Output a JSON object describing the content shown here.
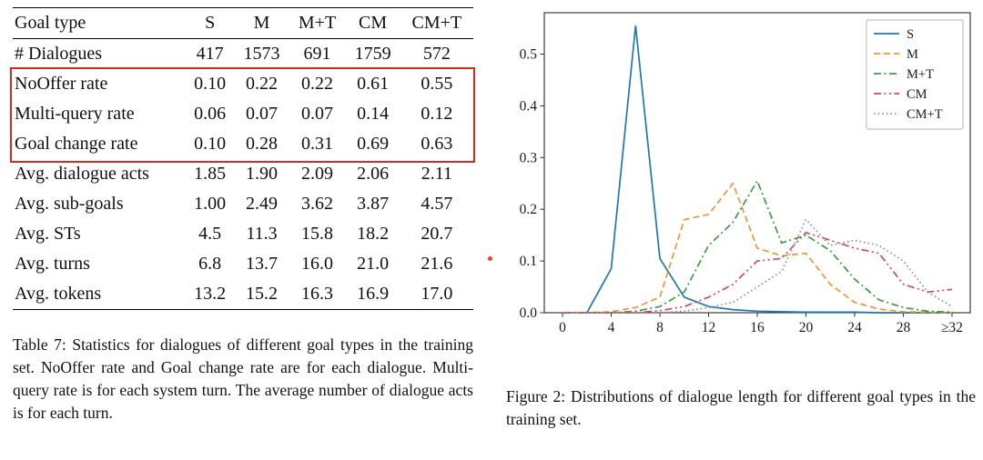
{
  "table": {
    "header": [
      "Goal type",
      "S",
      "M",
      "M+T",
      "CM",
      "CM+T"
    ],
    "rows": [
      {
        "label": "# Dialogues",
        "values": [
          "417",
          "1573",
          "691",
          "1759",
          "572"
        ],
        "highlight": false
      },
      {
        "label": "NoOffer rate",
        "values": [
          "0.10",
          "0.22",
          "0.22",
          "0.61",
          "0.55"
        ],
        "highlight": true
      },
      {
        "label": "Multi-query rate",
        "values": [
          "0.06",
          "0.07",
          "0.07",
          "0.14",
          "0.12"
        ],
        "highlight": true
      },
      {
        "label": "Goal change rate",
        "values": [
          "0.10",
          "0.28",
          "0.31",
          "0.69",
          "0.63"
        ],
        "highlight": true
      },
      {
        "label": "Avg. dialogue acts",
        "values": [
          "1.85",
          "1.90",
          "2.09",
          "2.06",
          "2.11"
        ],
        "highlight": false
      },
      {
        "label": "Avg. sub-goals",
        "values": [
          "1.00",
          "2.49",
          "3.62",
          "3.87",
          "4.57"
        ],
        "highlight": false
      },
      {
        "label": "Avg. STs",
        "values": [
          "4.5",
          "11.3",
          "15.8",
          "18.2",
          "20.7"
        ],
        "highlight": false
      },
      {
        "label": "Avg. turns",
        "values": [
          "6.8",
          "13.7",
          "16.0",
          "21.0",
          "21.6"
        ],
        "highlight": false
      },
      {
        "label": "Avg. tokens",
        "values": [
          "13.2",
          "15.2",
          "16.3",
          "16.9",
          "17.0"
        ],
        "highlight": false
      }
    ],
    "highlight_color": "#da291c",
    "caption": "Table 7: Statistics for dialogues of different goal types in the training set. NoOffer rate and Goal change rate are for each dialogue. Multi-query rate is for each system turn. The average number of dialogue acts is for each turn."
  },
  "figure": {
    "caption": "Figure 2: Distributions of dialogue length for different goal types in the training set."
  },
  "chart_data": {
    "type": "line",
    "title": "",
    "xlabel": "",
    "ylabel": "",
    "grid": false,
    "legend_position": "upper right",
    "x": [
      0,
      2,
      4,
      6,
      8,
      10,
      12,
      14,
      16,
      18,
      20,
      22,
      24,
      26,
      28,
      30,
      32
    ],
    "xlim": [
      -1.5,
      33.5
    ],
    "ylim": [
      0,
      0.58
    ],
    "xtick_values": [
      0,
      4,
      8,
      12,
      16,
      20,
      24,
      28,
      32
    ],
    "xtick_labels": [
      "0",
      "4",
      "8",
      "12",
      "16",
      "20",
      "24",
      "28",
      "≥32"
    ],
    "ytick_values": [
      0,
      0.1,
      0.2,
      0.3,
      0.4,
      0.5
    ],
    "ytick_labels": [
      "0.0",
      "0.1",
      "0.2",
      "0.3",
      "0.4",
      "0.5"
    ],
    "series": [
      {
        "name": "S",
        "color": "#1f77b4",
        "dash": "solid",
        "values": [
          0,
          0,
          0.085,
          0.555,
          0.105,
          0.03,
          0.012,
          0.006,
          0.003,
          0.002,
          0.001,
          0.001,
          0.001,
          0,
          0,
          0,
          0
        ]
      },
      {
        "name": "M",
        "color": "#f09537",
        "dash": "dashed",
        "values": [
          0,
          0,
          0.002,
          0.01,
          0.03,
          0.18,
          0.19,
          0.25,
          0.125,
          0.11,
          0.115,
          0.055,
          0.02,
          0.007,
          0.002,
          0.001,
          0
        ]
      },
      {
        "name": "M+T",
        "color": "#3d9b44",
        "dash": "dashdot",
        "values": [
          0,
          0,
          0,
          0.003,
          0.012,
          0.04,
          0.13,
          0.175,
          0.255,
          0.135,
          0.15,
          0.12,
          0.065,
          0.025,
          0.01,
          0.003,
          0.001
        ]
      },
      {
        "name": "CM",
        "color": "#d64565",
        "dash": "dashdotdot",
        "values": [
          0,
          0,
          0,
          0,
          0.004,
          0.012,
          0.03,
          0.055,
          0.1,
          0.105,
          0.155,
          0.14,
          0.125,
          0.115,
          0.055,
          0.04,
          0.045
        ]
      },
      {
        "name": "CM+T",
        "color": "#8f8fa3",
        "dash": "dotted",
        "values": [
          0,
          0,
          0,
          0,
          0,
          0.003,
          0.01,
          0.02,
          0.05,
          0.08,
          0.18,
          0.13,
          0.14,
          0.13,
          0.1,
          0.04,
          0.012
        ]
      }
    ]
  }
}
